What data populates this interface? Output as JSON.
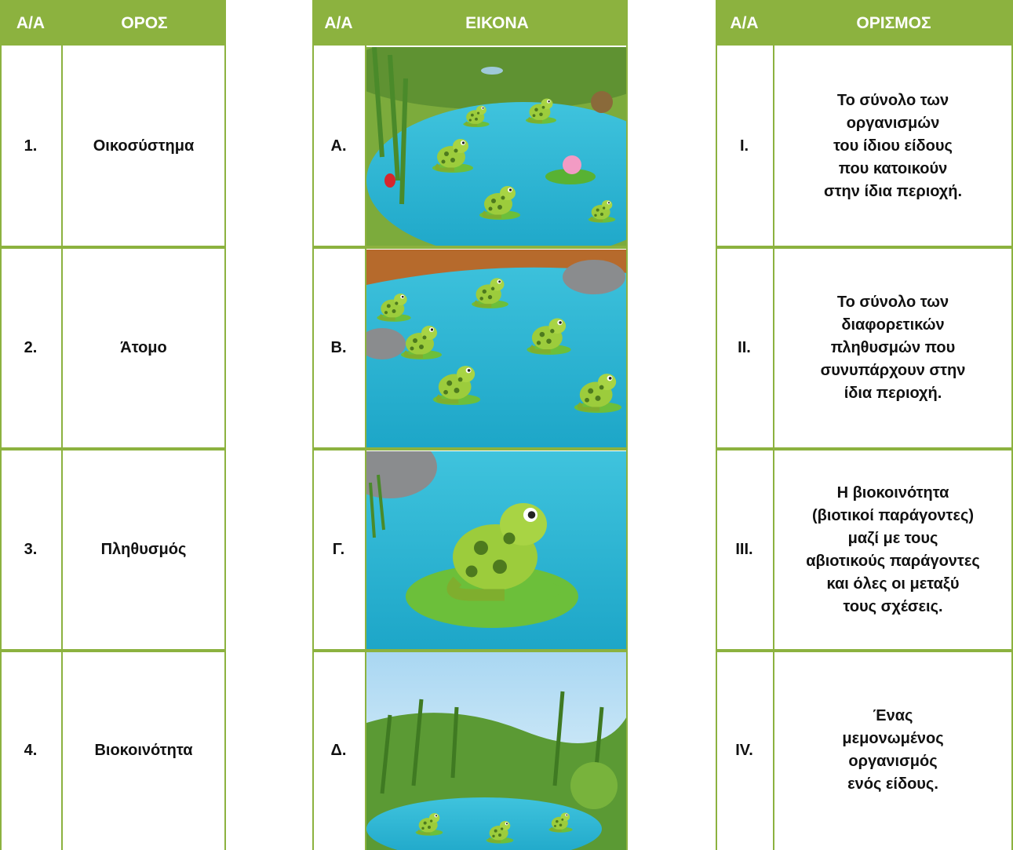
{
  "terms": {
    "headers": [
      "Α/Α",
      "ΟΡΟΣ"
    ],
    "rows": [
      {
        "id": "1.",
        "term": "Οικοσύστημα"
      },
      {
        "id": "2.",
        "term": "Άτομο"
      },
      {
        "id": "3.",
        "term": "Πληθυσμός"
      },
      {
        "id": "4.",
        "term": "Βιοκοινότητα"
      }
    ]
  },
  "images": {
    "headers": [
      "Α/Α",
      "ΕΙΚΟΝΑ"
    ],
    "rows": [
      {
        "id": "Α."
      },
      {
        "id": "Β."
      },
      {
        "id": "Γ."
      },
      {
        "id": "Δ."
      }
    ]
  },
  "definitions": {
    "headers": [
      "Α/Α",
      "ΟΡΙΣΜΟΣ"
    ],
    "rows": [
      {
        "id": "Ι.",
        "lines": [
          "Το σύνολο των",
          "οργανισμών",
          "του ίδιου είδους",
          "που κατοικούν",
          "στην ίδια περιοχή."
        ]
      },
      {
        "id": "ΙΙ.",
        "lines": [
          "Το σύνολο των",
          "διαφορετικών",
          "πληθυσμών που",
          "συνυπάρχουν στην",
          "ίδια περιοχή."
        ]
      },
      {
        "id": "ΙΙΙ.",
        "lines": [
          "Η βιοκοινότητα",
          "(βιοτικοί παράγοντες)",
          "μαζί με τους",
          "αβιοτικούς παράγοντες",
          "και όλες οι μεταξύ",
          "τους σχέσεις."
        ]
      },
      {
        "id": "ΙV.",
        "lines": [
          "Ένας",
          "μεμονωμένος",
          "οργανισμός",
          "ενός είδους."
        ]
      }
    ]
  }
}
